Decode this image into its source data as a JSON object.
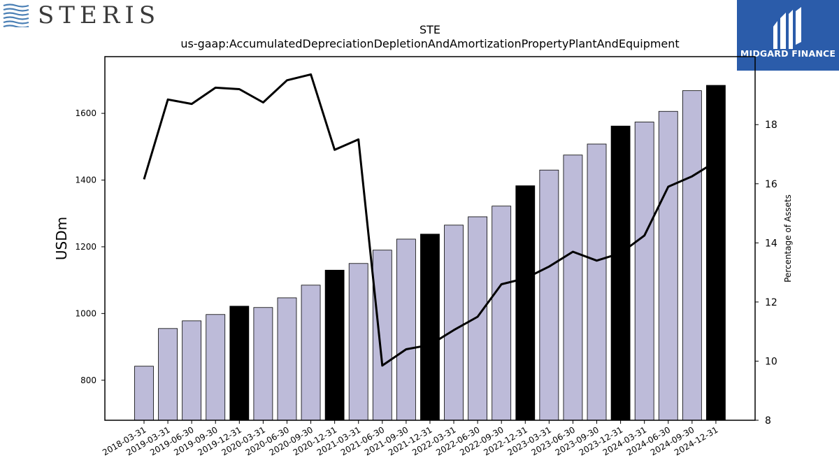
{
  "branding": {
    "company_logo_text": "STERIS",
    "publisher_logo_text": "MIDGARD FINANCE"
  },
  "colors": {
    "bar_default": "#bdbbd9",
    "bar_highlight": "#000000",
    "line": "#000000",
    "logo_waves": "#4a7fb5",
    "publisher_bg": "#2b5caa"
  },
  "chart_data": {
    "type": "bar",
    "title": "STE",
    "subtitle": "us-gaap:AccumulatedDepreciationDepletionAndAmortizationPropertyPlantAndEquipment",
    "ylabel": "USDm",
    "y2label": "Percentage of Assets",
    "ylim": [
      680,
      1770
    ],
    "y2lim": [
      8,
      20.3
    ],
    "yticks": [
      800,
      1000,
      1200,
      1400,
      1600
    ],
    "y2ticks": [
      8,
      10,
      12,
      14,
      16,
      18
    ],
    "grid": false,
    "categories": [
      "2018-03-31",
      "2019-03-31",
      "2019-06-30",
      "2019-09-30",
      "2019-12-31",
      "2020-03-31",
      "2020-06-30",
      "2020-09-30",
      "2020-12-31",
      "2021-03-31",
      "2021-06-30",
      "2021-09-30",
      "2021-12-31",
      "2022-03-31",
      "2022-06-30",
      "2022-09-30",
      "2022-12-31",
      "2023-03-31",
      "2023-06-30",
      "2023-09-30",
      "2023-12-31",
      "2024-03-31",
      "2024-06-30",
      "2024-09-30",
      "2024-12-31"
    ],
    "series": [
      {
        "type": "bar",
        "axis": "left",
        "values": [
          842,
          955,
          978,
          997,
          1022,
          1018,
          1047,
          1085,
          1130,
          1150,
          1190,
          1223,
          1238,
          1265,
          1290,
          1322,
          1383,
          1430,
          1475,
          1508,
          1562,
          1574,
          1606,
          1668,
          1684
        ],
        "highlight": [
          false,
          false,
          false,
          false,
          true,
          false,
          false,
          false,
          true,
          false,
          false,
          false,
          true,
          false,
          false,
          false,
          true,
          false,
          false,
          false,
          true,
          false,
          false,
          false,
          true
        ]
      },
      {
        "type": "line",
        "axis": "right",
        "values": [
          16.15,
          18.85,
          18.7,
          19.25,
          19.2,
          18.75,
          19.5,
          19.7,
          17.15,
          17.5,
          9.85,
          10.4,
          10.55,
          11.05,
          11.5,
          12.6,
          12.8,
          13.2,
          13.7,
          13.4,
          13.65,
          14.25,
          15.9,
          16.25,
          16.75
        ]
      }
    ]
  }
}
